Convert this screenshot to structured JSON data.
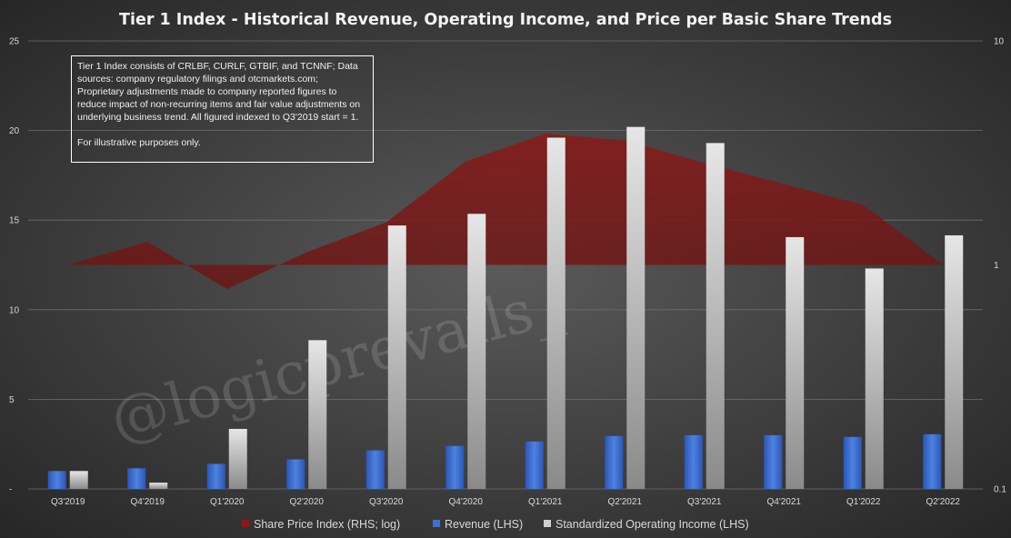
{
  "chart_data": {
    "type": "bar",
    "title": "Tier 1 Index - Historical Revenue, Operating Income, and Price per Basic Share Trends",
    "categories": [
      "Q3'2019",
      "Q4'2019",
      "Q1'2020",
      "Q2'2020",
      "Q3'2020",
      "Q4'2020",
      "Q1'2021",
      "Q2'2021",
      "Q3'2021",
      "Q4'2021",
      "Q1'2022",
      "Q2'2022"
    ],
    "left_axis": {
      "ylim": [
        0,
        25
      ],
      "ticks": [
        "-",
        "5",
        "10",
        "15",
        "20",
        "25"
      ],
      "tick_values": [
        0,
        5,
        10,
        15,
        20,
        25
      ]
    },
    "right_axis": {
      "scale": "log",
      "ylim": [
        0.1,
        10
      ],
      "ticks": [
        "0.1",
        "1",
        "10"
      ],
      "tick_values": [
        0.1,
        1,
        10
      ]
    },
    "series": [
      {
        "name": "Share Price Index (RHS; log)",
        "type": "area",
        "axis": "right",
        "color": "#7a1616",
        "values": [
          1.0,
          1.27,
          0.78,
          1.14,
          1.55,
          2.9,
          3.85,
          3.6,
          2.85,
          2.3,
          1.85,
          1.0
        ]
      },
      {
        "name": "Revenue (LHS)",
        "type": "bar",
        "axis": "left",
        "color": "#3f6fd0",
        "values": [
          1.0,
          1.15,
          1.4,
          1.65,
          2.15,
          2.4,
          2.65,
          2.95,
          3.0,
          3.0,
          2.9,
          3.05
        ]
      },
      {
        "name": "Standardized Operating Income (LHS)",
        "type": "bar",
        "axis": "left",
        "color": "#d0d0d0",
        "values": [
          1.0,
          0.35,
          3.35,
          8.3,
          14.7,
          15.35,
          19.6,
          20.2,
          19.3,
          14.05,
          12.3,
          14.15
        ]
      }
    ],
    "legend": {
      "placement": "bottom"
    },
    "grid": true
  },
  "note": {
    "line1": "Tier 1 Index consists of CRLBF, CURLF, GTBIF, and TCNNF; Data sources: company regulatory filings and otcmarkets.com; Proprietary adjustments made to company reported figures to reduce impact of non-recurring items and fair value adjustments on underlying business trend. All figured indexed to Q3'2019 start = 1.",
    "line2": "For illustrative purposes only."
  },
  "watermark": "@logicprevails_",
  "colors": {
    "background_center": "#5a5a5a",
    "background_edge": "#262626",
    "gridline": "#6a6a6a"
  }
}
